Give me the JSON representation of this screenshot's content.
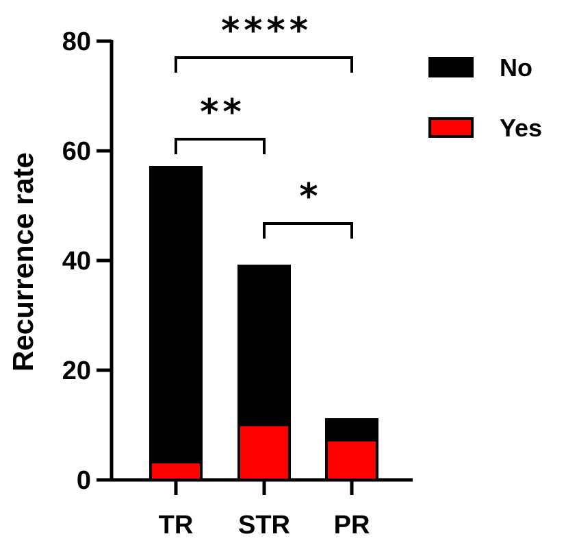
{
  "chart_data": {
    "type": "bar",
    "stacked": true,
    "categories": [
      "TR",
      "STR",
      "PR"
    ],
    "series": [
      {
        "name": "Yes",
        "color": "#ff0000",
        "values": [
          3.5,
          10.3,
          7.5
        ]
      },
      {
        "name": "No",
        "color": "#000000",
        "values": [
          53.5,
          28.7,
          3.5
        ]
      }
    ],
    "totals": [
      57,
      39,
      11
    ],
    "xlabel": "",
    "ylabel": "Recurrence rate",
    "ylim": [
      0,
      80
    ],
    "yticks": [
      0,
      20,
      40,
      60,
      80
    ],
    "grid": false,
    "legend": {
      "placement": "right",
      "order": [
        "No",
        "Yes"
      ]
    },
    "significance": [
      {
        "from": "TR",
        "to": "PR",
        "label": "****",
        "level": 1
      },
      {
        "from": "TR",
        "to": "STR",
        "label": "**",
        "level": 0
      },
      {
        "from": "STR",
        "to": "PR",
        "label": "*",
        "level": 0
      }
    ]
  }
}
